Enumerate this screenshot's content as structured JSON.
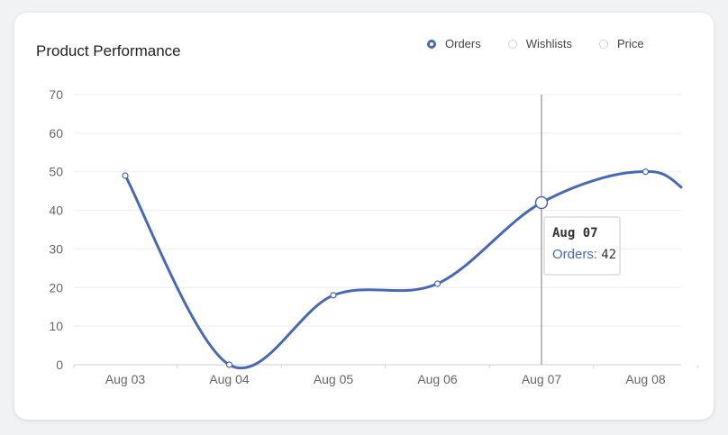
{
  "chart_data": {
    "type": "line",
    "title": "Product Performance",
    "categories": [
      "Aug 03",
      "Aug 04",
      "Aug 05",
      "Aug 06",
      "Aug 07",
      "Aug 08"
    ],
    "series": [
      {
        "name": "Orders",
        "values": [
          49,
          0,
          18,
          21,
          42,
          50
        ],
        "color": "#4a69b5",
        "selected": true
      },
      {
        "name": "Wishlists",
        "selected": false
      },
      {
        "name": "Price",
        "selected": false
      }
    ],
    "y_ticks": [
      0,
      10,
      20,
      30,
      40,
      50,
      60,
      70
    ],
    "ylim": [
      0,
      70
    ],
    "grid": true,
    "legend": "top-right",
    "tooltip": {
      "date": "Aug 07",
      "label": "Orders:",
      "value": "42"
    }
  }
}
